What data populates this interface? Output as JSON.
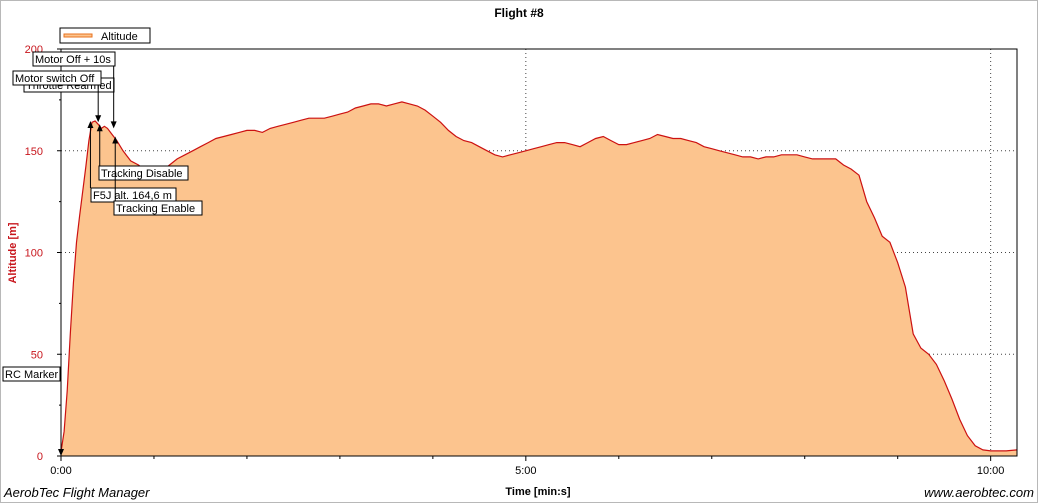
{
  "chart_data": {
    "type": "area",
    "title": "Flight #8",
    "xlabel": "Time [min:s]",
    "ylabel": "Altitude [m]",
    "xlim": [
      0,
      617
    ],
    "ylim": [
      0,
      200
    ],
    "x_ticks": [
      {
        "value": 0,
        "label": "0:00"
      },
      {
        "value": 300,
        "label": "5:00"
      },
      {
        "value": 600,
        "label": "10:00"
      }
    ],
    "x_minor_ticks": [
      60,
      120,
      180,
      240,
      360,
      420,
      480,
      540
    ],
    "y_ticks": [
      {
        "value": 0,
        "label": "0"
      },
      {
        "value": 50,
        "label": "50"
      },
      {
        "value": 100,
        "label": "100"
      },
      {
        "value": 150,
        "label": "150"
      },
      {
        "value": 200,
        "label": "200"
      }
    ],
    "grid": "dotted",
    "legend_position": "top-left",
    "colors": {
      "line": "#cc1111",
      "fill": "#fcc48e",
      "axis_text": "#c8161d"
    },
    "series": [
      {
        "name": "Altitude",
        "x": [
          0,
          2,
          4,
          6,
          8,
          10,
          12,
          14,
          16,
          18,
          20,
          22,
          24,
          26,
          28,
          30,
          33,
          36,
          40,
          45,
          50,
          55,
          60,
          65,
          70,
          75,
          80,
          85,
          90,
          95,
          100,
          105,
          110,
          115,
          120,
          125,
          130,
          135,
          140,
          145,
          150,
          155,
          160,
          165,
          170,
          175,
          180,
          185,
          190,
          195,
          200,
          205,
          210,
          215,
          220,
          225,
          230,
          235,
          240,
          245,
          250,
          255,
          260,
          265,
          270,
          275,
          280,
          285,
          290,
          295,
          300,
          305,
          310,
          315,
          320,
          325,
          330,
          335,
          340,
          345,
          350,
          355,
          360,
          365,
          370,
          375,
          380,
          385,
          390,
          395,
          400,
          405,
          410,
          415,
          420,
          425,
          430,
          435,
          440,
          445,
          450,
          455,
          460,
          465,
          470,
          475,
          480,
          485,
          490,
          495,
          500,
          505,
          510,
          515,
          520,
          525,
          530,
          535,
          540,
          545,
          550,
          555,
          560,
          565,
          570,
          575,
          580,
          585,
          590,
          595,
          600,
          605,
          610,
          617
        ],
        "values": [
          2,
          12,
          32,
          60,
          85,
          105,
          118,
          130,
          142,
          155,
          164,
          164.6,
          163,
          161,
          162,
          161,
          158,
          155,
          150,
          145,
          143,
          140,
          138,
          140,
          143,
          146,
          148,
          150,
          152,
          154,
          156,
          157,
          158,
          159,
          160,
          160,
          159,
          161,
          162,
          163,
          164,
          165,
          166,
          166,
          166,
          167,
          168,
          169,
          171,
          172,
          173,
          173,
          172,
          173,
          174,
          173,
          172,
          170,
          167,
          164,
          160,
          157,
          155,
          154,
          152,
          150,
          148,
          147,
          148,
          149,
          150,
          151,
          152,
          153,
          154,
          154,
          153,
          152,
          154,
          156,
          157,
          155,
          153,
          153,
          154,
          155,
          156,
          158,
          157,
          156,
          156,
          155,
          154,
          152,
          151,
          150,
          149,
          148,
          147,
          147,
          146,
          147,
          147,
          148,
          148,
          148,
          147,
          146,
          146,
          146,
          146,
          143,
          141,
          138,
          125,
          117,
          108,
          105,
          95,
          83,
          60,
          53,
          50,
          45,
          37,
          28,
          18,
          10,
          5,
          3,
          2.5,
          2.5,
          2.5,
          3
        ]
      }
    ],
    "annotations": [
      {
        "label": "RC Marker",
        "x": 0,
        "y": 0,
        "direction": "down"
      },
      {
        "label": "Throttle Rearmed",
        "x": 0,
        "y": 179,
        "direction": "none"
      },
      {
        "label": "Motor switch Off",
        "x": 24,
        "y": 164,
        "direction": "down"
      },
      {
        "label": "Motor Off + 10s",
        "x": 34,
        "y": 161,
        "direction": "down"
      },
      {
        "label": "F5J alt. 164,6 m",
        "x": 19,
        "y": 164.6,
        "direction": "up"
      },
      {
        "label": "Tracking Disable",
        "x": 25,
        "y": 163,
        "direction": "up"
      },
      {
        "label": "Tracking Enable",
        "x": 35,
        "y": 157,
        "direction": "up"
      }
    ]
  },
  "footer": {
    "left": "AerobTec Flight Manager",
    "right": "www.aerobtec.com"
  }
}
